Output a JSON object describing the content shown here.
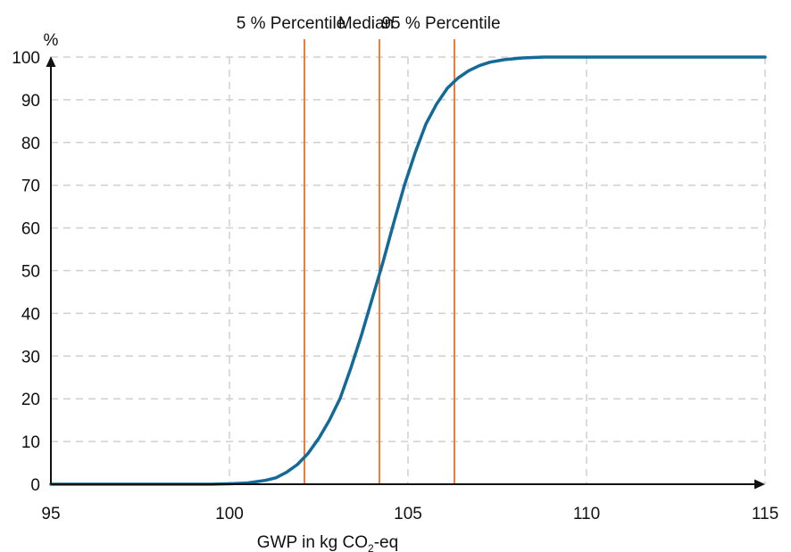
{
  "chart_data": {
    "type": "line",
    "title": "",
    "xlabel": {
      "prefix": "GWP in kg CO",
      "subscript": "2",
      "suffix": "-eq"
    },
    "ylabel": "%",
    "xlim": [
      95,
      115
    ],
    "ylim": [
      0,
      100
    ],
    "x_ticks": [
      "95",
      "100",
      "105",
      "110",
      "115"
    ],
    "y_ticks": [
      "0",
      "10",
      "20",
      "30",
      "40",
      "50",
      "60",
      "70",
      "80",
      "90",
      "100"
    ],
    "grid": true,
    "legend": "none",
    "series": [
      {
        "color": "#136a99",
        "x": [
          95,
          99.5,
          100,
          100.5,
          101,
          101.3,
          101.6,
          101.9,
          102.2,
          102.5,
          102.8,
          103.1,
          103.4,
          103.7,
          104.0,
          104.3,
          104.6,
          104.9,
          105.2,
          105.5,
          105.8,
          106.1,
          106.4,
          106.7,
          107.0,
          107.3,
          107.7,
          108.2,
          108.8,
          110,
          115
        ],
        "y": [
          0,
          0,
          0.1,
          0.3,
          0.9,
          1.5,
          2.8,
          4.6,
          7.2,
          10.7,
          15.0,
          20.1,
          27.2,
          35.0,
          43.5,
          52.0,
          61.2,
          70.0,
          77.6,
          84.3,
          89.0,
          92.7,
          95.1,
          96.8,
          98.0,
          98.8,
          99.4,
          99.8,
          100,
          100,
          100
        ]
      }
    ],
    "reference_lines": [
      {
        "label": "5 % Percentile",
        "x": 102.1,
        "color": "#ee7d3b"
      },
      {
        "label": "Median",
        "x": 104.2,
        "color": "#ee7d3b"
      },
      {
        "label": "95 % Percentile",
        "x": 106.3,
        "color": "#ee7d3b"
      }
    ]
  }
}
